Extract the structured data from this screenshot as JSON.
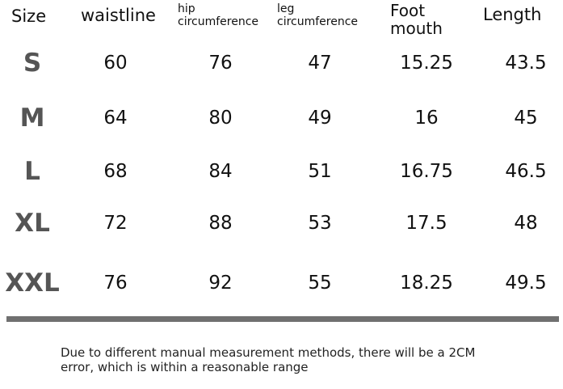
{
  "table": {
    "header": [
      "Size",
      "waistline",
      "hip circumference",
      "leg circumference",
      "Foot mouth",
      "Length"
    ],
    "rows": [
      [
        "S",
        "60",
        "76",
        "47",
        "15.25",
        "43.5"
      ],
      [
        "M",
        "64",
        "80",
        "49",
        "16",
        "45"
      ],
      [
        "L",
        "68",
        "84",
        "51",
        "16.75",
        "46.5"
      ],
      [
        "XL",
        "72",
        "88",
        "53",
        "17.5",
        "48"
      ],
      [
        "XXL",
        "76",
        "92",
        "55",
        "18.25",
        "49.5"
      ]
    ]
  },
  "note": "Due to different manual measurement methods, there will be a 2CM error, which is within a reasonable range"
}
